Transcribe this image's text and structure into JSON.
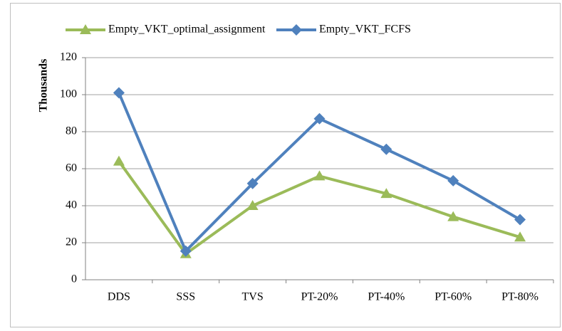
{
  "chart_data": {
    "type": "line",
    "y_label": "Thousands",
    "categories": [
      "DDS",
      "SSS",
      "TVS",
      "PT-20%",
      "PT-40%",
      "PT-60%",
      "PT-80%"
    ],
    "series": [
      {
        "name": "Empty_VKT_optimal_assignment",
        "color": "#9bbb59",
        "marker": "triangle",
        "values": [
          64,
          14,
          40,
          56,
          46.5,
          34,
          23
        ]
      },
      {
        "name": "Empty_VKT_FCFS",
        "color": "#4f81bd",
        "marker": "diamond",
        "values": [
          101,
          15.5,
          52,
          87,
          70.5,
          53.5,
          32.5
        ]
      }
    ],
    "ylim": [
      0,
      120
    ],
    "yticks": [
      0,
      20,
      40,
      60,
      80,
      100,
      120
    ],
    "grid": true,
    "legend": "top"
  }
}
